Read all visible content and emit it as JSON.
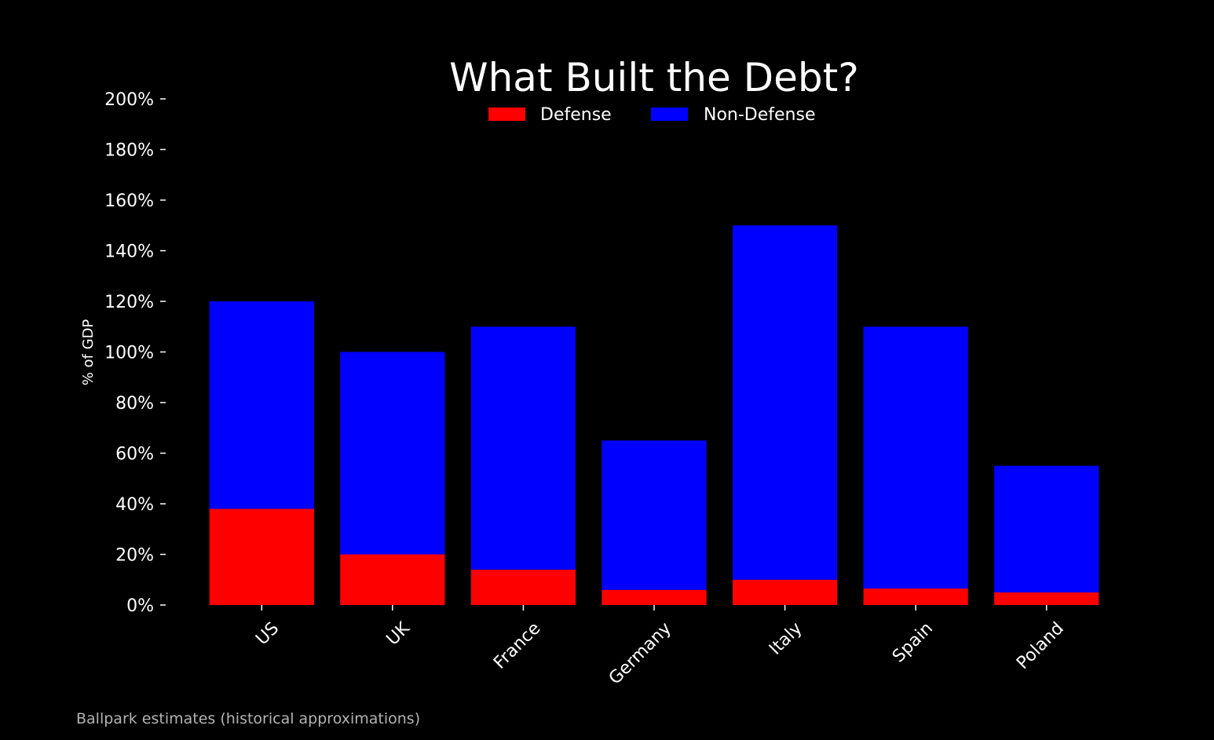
{
  "chart_data": {
    "type": "bar",
    "stacked": true,
    "title": "What Built the Debt?",
    "ylabel": "% of GDP",
    "xlabel": "",
    "categories": [
      "US",
      "UK",
      "France",
      "Germany",
      "Italy",
      "Spain",
      "Poland"
    ],
    "series": [
      {
        "name": "Defense",
        "color": "#ff0000",
        "values": [
          38,
          20,
          14,
          6,
          10,
          6.5,
          5
        ]
      },
      {
        "name": "Non-Defense",
        "color": "#0000ff",
        "values": [
          82,
          80,
          96,
          59,
          140,
          103.5,
          50
        ]
      }
    ],
    "ylim": [
      0,
      200
    ],
    "yticks": [
      0,
      20,
      40,
      60,
      80,
      100,
      120,
      140,
      160,
      180,
      200
    ],
    "ytick_format": "%",
    "grid": false,
    "legend": "top-center",
    "background": "#000000"
  },
  "footnote": "Ballpark estimates (historical approximations)"
}
